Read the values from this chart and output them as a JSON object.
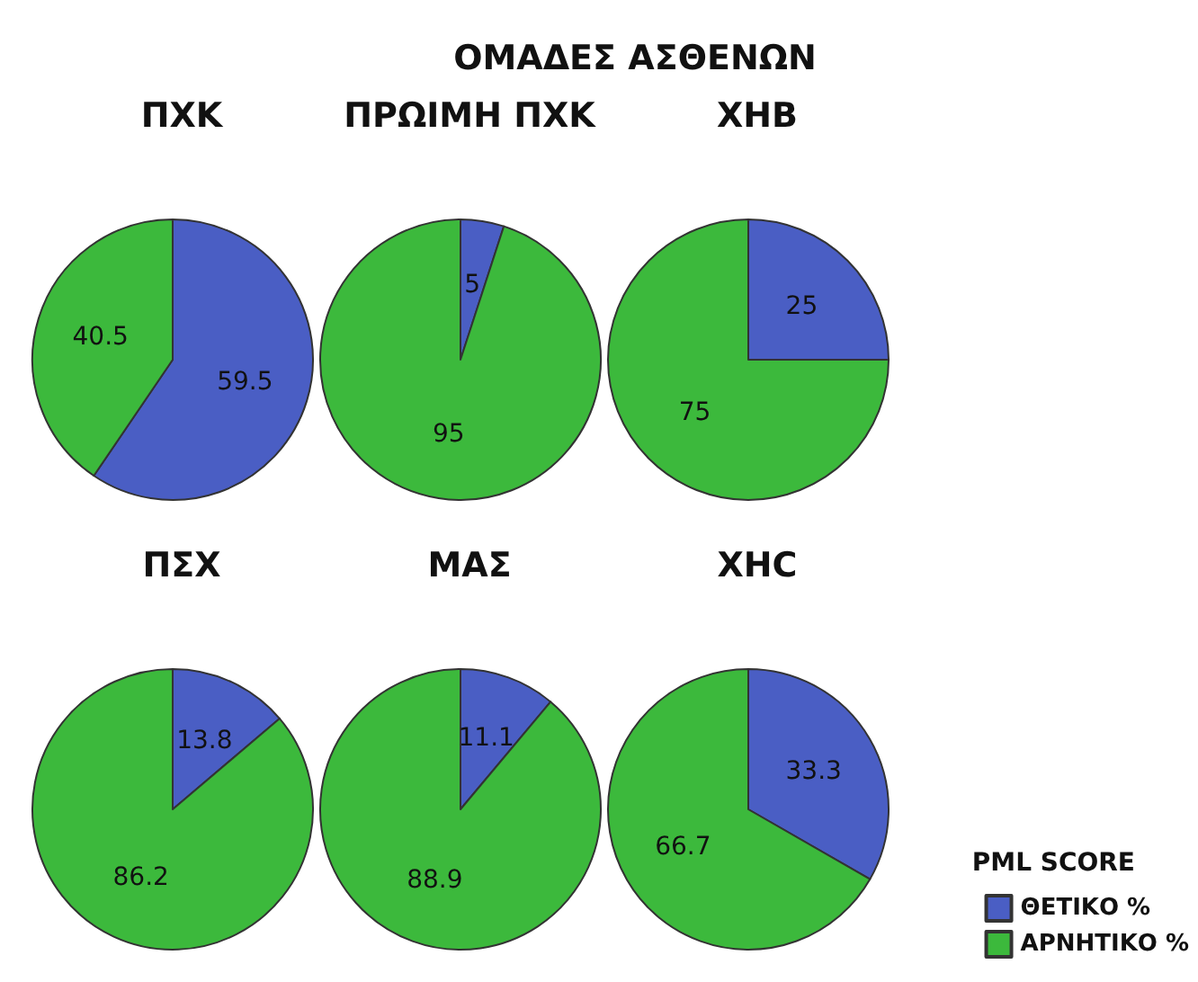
{
  "chart_data": [
    {
      "type": "other",
      "title": "ΟΜΑΔΕΣ ΑΣΘΕΝΩΝ"
    },
    {
      "type": "pie",
      "title": "ΠΧΚ",
      "values": [
        59.5,
        40.5
      ],
      "colors": [
        "#4a5ec4",
        "#3cb93c"
      ],
      "data_labels": true
    },
    {
      "type": "pie",
      "title": "ΠΡΩΙΜΗ ΠΧΚ",
      "values": [
        5,
        95
      ],
      "colors": [
        "#4a5ec4",
        "#3cb93c"
      ],
      "data_labels": true
    },
    {
      "type": "pie",
      "title": "ΧΗΒ",
      "values": [
        25,
        75
      ],
      "colors": [
        "#4a5ec4",
        "#3cb93c"
      ],
      "data_labels": true
    },
    {
      "type": "pie",
      "title": "ΠΣΧ",
      "values": [
        13.8,
        86.2
      ],
      "colors": [
        "#4a5ec4",
        "#3cb93c"
      ],
      "data_labels": true
    },
    {
      "type": "pie",
      "title": "ΜΑΣ",
      "values": [
        11.1,
        88.9
      ],
      "colors": [
        "#4a5ec4",
        "#3cb93c"
      ],
      "data_labels": true
    },
    {
      "type": "pie",
      "title": "ΧΗC",
      "categories": [
        "ΘΕΤΙΚΟ %",
        "ΑΡΝΗΤΙΚΟ %"
      ],
      "values": [
        33.3,
        66.7
      ],
      "colors": [
        "#4a5ec4",
        "#3cb93c"
      ],
      "data_labels": true,
      "legend": "bottom right",
      "legend_title": "PML SCORE"
    }
  ]
}
